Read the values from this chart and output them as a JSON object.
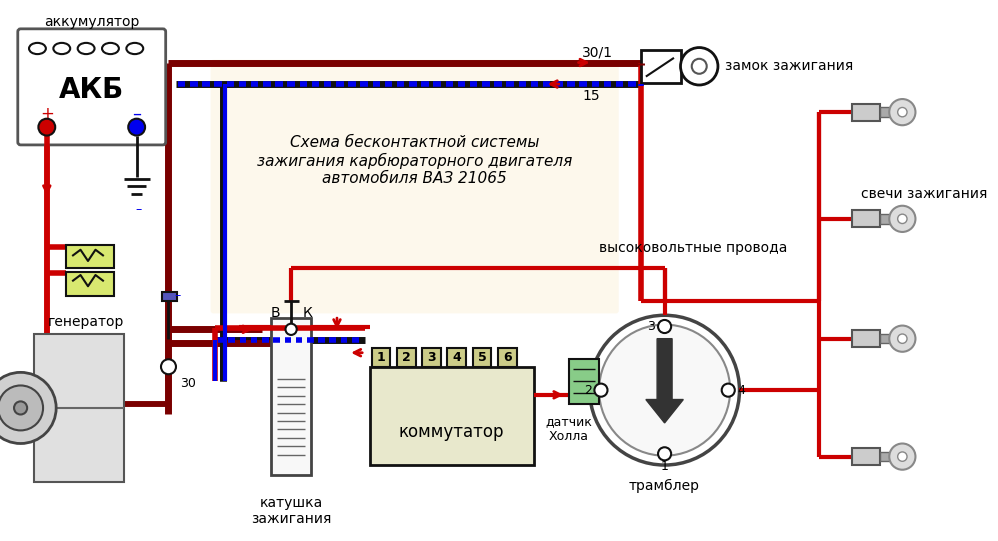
{
  "title": "Схема бесконтактной системы\nзажигания карбюраторного двигателя\nавтомобиля ВАЗ 21065",
  "bg_color": "#ffffff",
  "panel_color": "#fdf8ec",
  "wire_red": "#cc0000",
  "wire_blue": "#0000ee",
  "wire_black": "#111111",
  "wire_darkred": "#7a0000",
  "label_color": "#000000",
  "font_family": "DejaVu Sans",
  "labels": {
    "akkumulator": "аккумулятор",
    "akb": "АКБ",
    "generator": "генератор",
    "katushka": "катушка\nзажигания",
    "kommutator": "коммутатор",
    "zamok": "замок зажигания",
    "datchik": "датчик\nХолла",
    "trambler": "трамблер",
    "svechi": "свечи зажигания",
    "vv_provoda": "высоковольтные провода",
    "label_30_1": "30/1",
    "label_15": "15",
    "label_30": "30",
    "label_B": "В",
    "label_K": "К"
  }
}
